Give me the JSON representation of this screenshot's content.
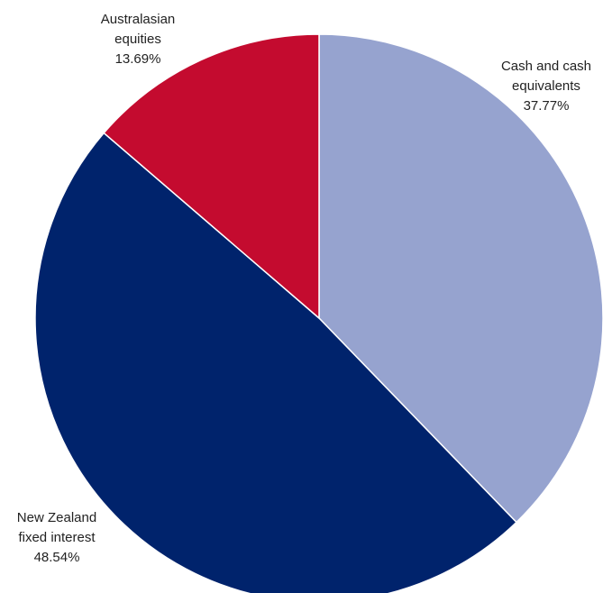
{
  "chart_data": {
    "type": "pie",
    "title": "",
    "start_angle_deg": 0,
    "direction": "clockwise",
    "legend": "none",
    "slices": [
      {
        "label_lines": [
          "Cash and cash",
          "equivalents"
        ],
        "value_label": "37.77%",
        "value": 37.77,
        "color": "#96a3cf"
      },
      {
        "label_lines": [
          "New Zealand",
          "fixed interest"
        ],
        "value_label": "48.54%",
        "value": 48.54,
        "color": "#00236c"
      },
      {
        "label_lines": [
          "Australasian",
          "equities"
        ],
        "value_label": "13.69%",
        "value": 13.69,
        "color": "#c40b2f"
      }
    ]
  }
}
